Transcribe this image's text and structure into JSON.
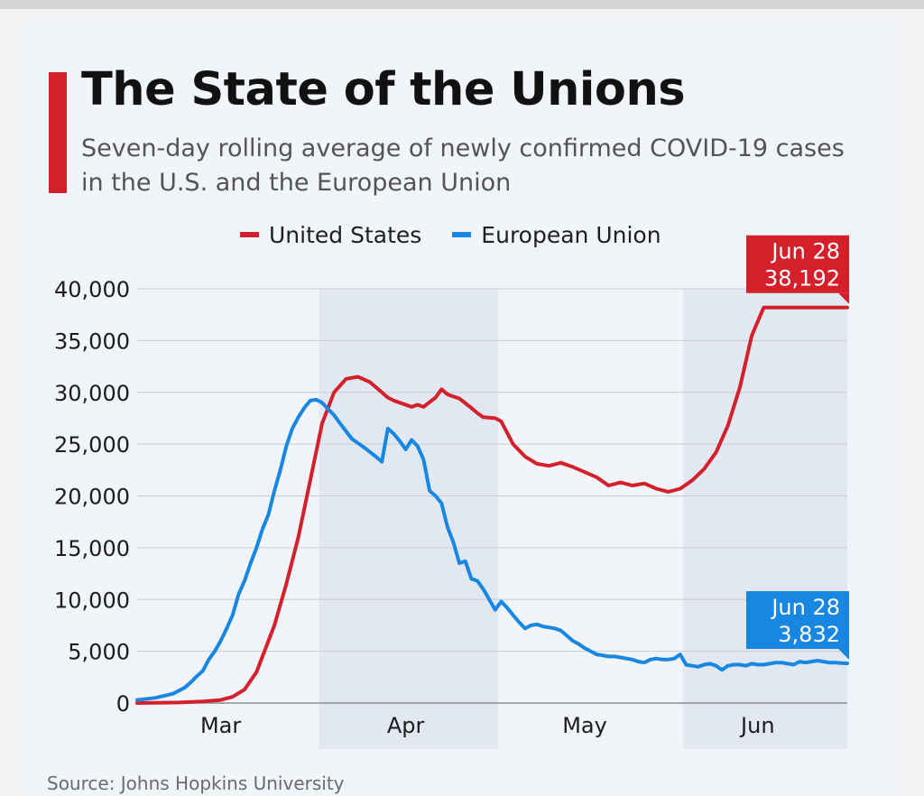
{
  "title": "The State of the Unions",
  "subtitle": "Seven-day rolling average of newly confirmed COVID-19 cases in the U.S. and the European Union",
  "legend": {
    "us": "United States",
    "eu": "European Union"
  },
  "source": "Source: Johns Hopkins University",
  "colors": {
    "us": "#d3202a",
    "eu": "#1887e1",
    "accent": "#d3202a",
    "shade": "#e2e8f1",
    "grid": "#c9ccd1"
  },
  "chart_data": {
    "type": "line",
    "title": "The State of the Unions",
    "xlabel": "",
    "ylabel": "",
    "x_range": [
      1,
      120
    ],
    "ylim": [
      0,
      40000
    ],
    "y_ticks": [
      0,
      5000,
      10000,
      15000,
      20000,
      25000,
      30000,
      35000,
      40000
    ],
    "y_tick_labels": [
      "0",
      "5,000",
      "10,000",
      "15,000",
      "20,000",
      "25,000",
      "30,000",
      "35,000",
      "40,000"
    ],
    "month_labels": [
      {
        "label": "Mar",
        "at": 15
      },
      {
        "label": "Apr",
        "at": 46
      },
      {
        "label": "May",
        "at": 76
      },
      {
        "label": "Jun",
        "at": 105
      }
    ],
    "shaded_ranges": [
      [
        31.5,
        61.5
      ],
      [
        92.5,
        120
      ]
    ],
    "series": [
      {
        "name": "United States",
        "key": "us",
        "x": [
          1,
          8,
          12,
          15,
          17,
          19,
          21,
          24,
          26,
          28,
          30,
          32,
          34,
          36,
          38,
          40,
          41,
          42,
          43,
          44,
          45,
          47,
          48,
          49,
          51,
          52,
          53,
          55,
          57,
          58,
          59,
          61,
          62,
          64,
          66,
          68,
          70,
          72,
          74,
          76,
          78,
          80,
          82,
          84,
          86,
          88,
          90,
          92,
          94,
          96,
          98,
          100,
          102,
          104,
          106,
          108,
          110,
          112,
          114,
          116,
          118,
          119,
          120
        ],
        "values": [
          0,
          50,
          150,
          300,
          600,
          1300,
          3000,
          7500,
          11500,
          16000,
          21500,
          27000,
          30000,
          31300,
          31500,
          31000,
          30500,
          30000,
          29500,
          29200,
          29000,
          28600,
          28800,
          28600,
          29500,
          30300,
          29800,
          29400,
          28500,
          28000,
          27600,
          27500,
          27200,
          25000,
          23800,
          23100,
          22900,
          23200,
          22800,
          22300,
          21800,
          21000,
          21300,
          21000,
          21200,
          20700,
          20400,
          20700,
          21500,
          22600,
          24200,
          26800,
          30500,
          35500,
          38192,
          38192,
          38192,
          38192,
          38192,
          38192,
          38192,
          38192,
          38192
        ]
      },
      {
        "name": "European Union",
        "key": "eu",
        "x": [
          1,
          4,
          7,
          9,
          10,
          11,
          12,
          13,
          14,
          15,
          16,
          17,
          18,
          19,
          20,
          21,
          22,
          23,
          24,
          25,
          26,
          27,
          28,
          29,
          30,
          31,
          32,
          33,
          34,
          35,
          37,
          39,
          41,
          42,
          43,
          44,
          45,
          46,
          47,
          48,
          49,
          50,
          51,
          52,
          53,
          54,
          55,
          56,
          57,
          58,
          59,
          60,
          61,
          62,
          63,
          64,
          65,
          66,
          67,
          68,
          69,
          70,
          71,
          72,
          73,
          74,
          75,
          76,
          77,
          78,
          79,
          80,
          81,
          82,
          83,
          84,
          85,
          86,
          87,
          88,
          89,
          90,
          91,
          92,
          93,
          94,
          95,
          96,
          97,
          98,
          99,
          100,
          101,
          102,
          103,
          104,
          105,
          106,
          107,
          108,
          109,
          110,
          111,
          112,
          113,
          114,
          115,
          116,
          117,
          118,
          119,
          120
        ],
        "values": [
          300,
          500,
          900,
          1500,
          2000,
          2600,
          3100,
          4200,
          5000,
          6000,
          7200,
          8500,
          10500,
          11800,
          13500,
          15000,
          16800,
          18200,
          20500,
          22500,
          24800,
          26500,
          27600,
          28500,
          29200,
          29300,
          29000,
          28400,
          27800,
          27000,
          25500,
          24700,
          23800,
          23300,
          26500,
          26000,
          25300,
          24500,
          25400,
          24800,
          23500,
          20500,
          20000,
          19300,
          17000,
          15500,
          13500,
          13700,
          12000,
          11800,
          11000,
          10000,
          9000,
          9800,
          9200,
          8500,
          7800,
          7200,
          7500,
          7600,
          7400,
          7300,
          7200,
          7000,
          6500,
          6000,
          5700,
          5300,
          5000,
          4700,
          4600,
          4500,
          4500,
          4400,
          4300,
          4200,
          4000,
          3900,
          4200,
          4300,
          4200,
          4200,
          4300,
          4700,
          3700,
          3600,
          3500,
          3700,
          3800,
          3600,
          3200,
          3600,
          3700,
          3700,
          3600,
          3800,
          3700,
          3700,
          3800,
          3900,
          3900,
          3800,
          3700,
          4000,
          3900,
          4000,
          4100,
          4000,
          3900,
          3900,
          3850,
          3832
        ]
      }
    ],
    "callouts": [
      {
        "series": "us",
        "date": "Jun 28",
        "value_label": "38,192",
        "x": 120,
        "value": 38192
      },
      {
        "series": "eu",
        "date": "Jun 28",
        "value_label": "3,832",
        "x": 120,
        "value": 3832
      }
    ]
  }
}
